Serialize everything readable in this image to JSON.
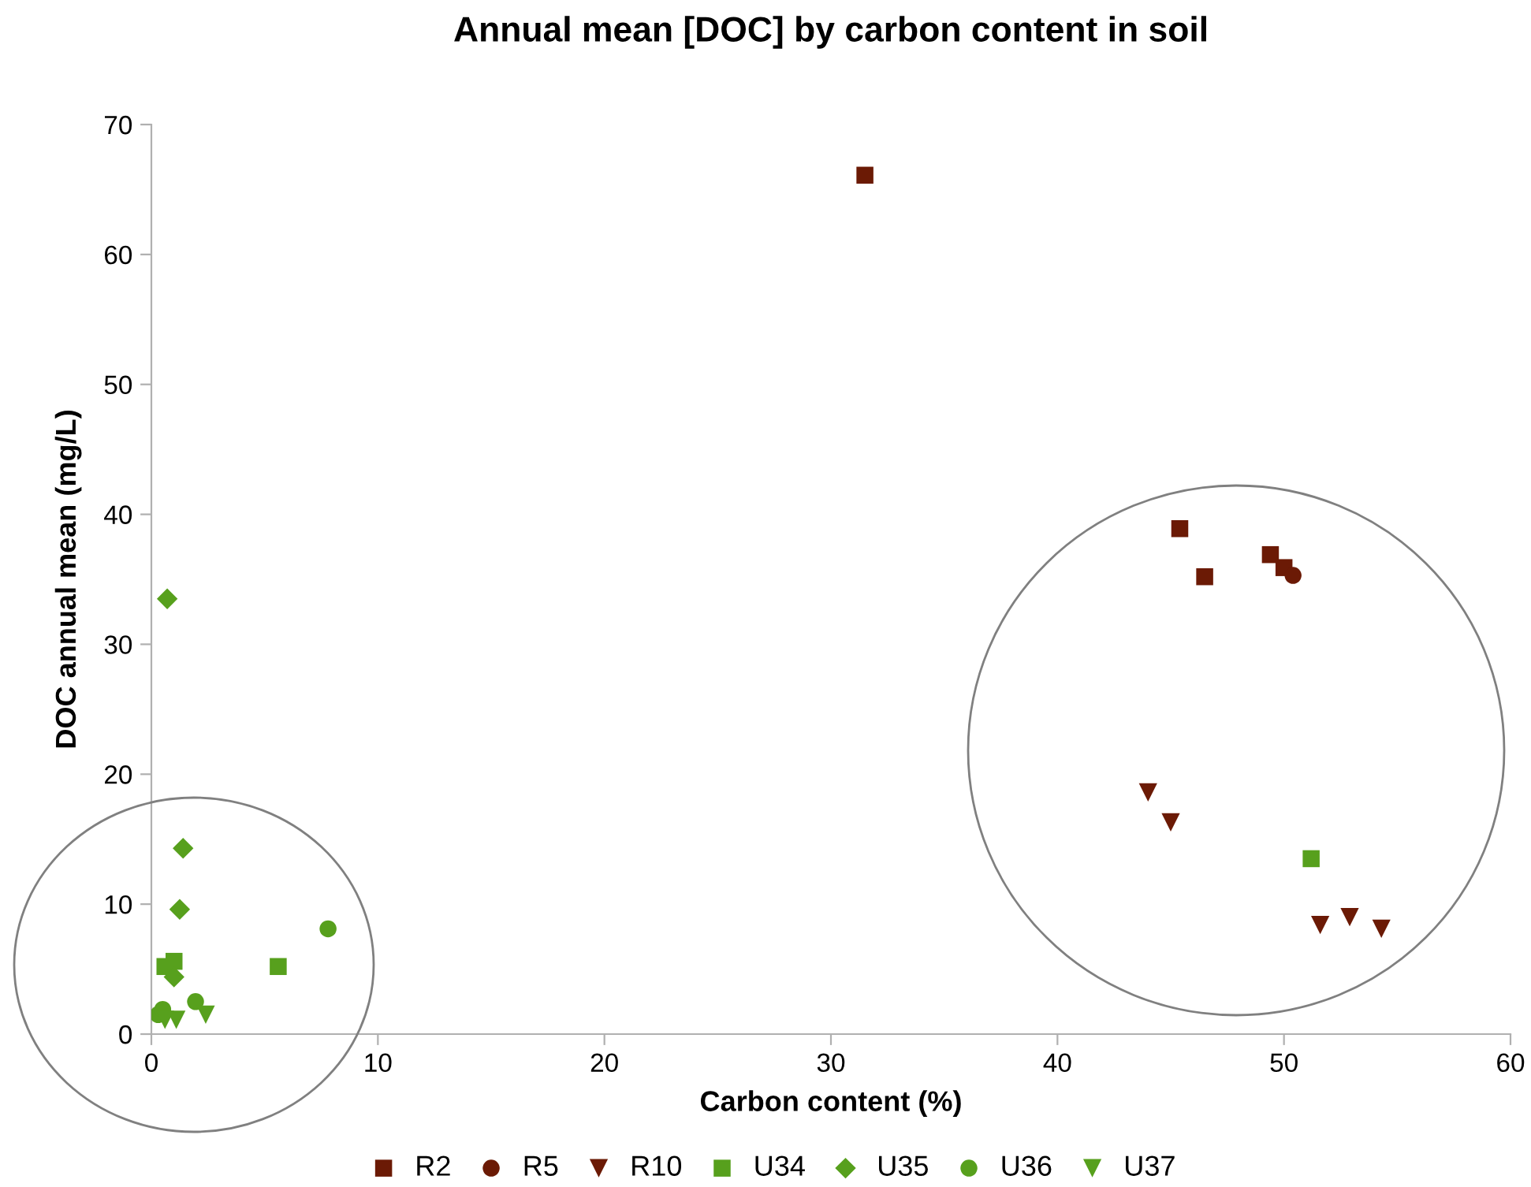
{
  "chart_data": {
    "type": "scatter",
    "title": "Annual mean [DOC] by carbon content in soil",
    "xlabel": "Carbon content (%)",
    "ylabel": "DOC annual mean (mg/L)",
    "xlim": [
      0,
      60
    ],
    "xticks": [
      0,
      10,
      20,
      30,
      40,
      50,
      60
    ],
    "ylim": [
      0,
      70
    ],
    "yticks": [
      0,
      10,
      20,
      30,
      40,
      50,
      60,
      70
    ],
    "grid": false,
    "legend": "bottom",
    "series": [
      {
        "name": "R2",
        "color": "#6b1a05",
        "marker": "square",
        "x": [
          31.5,
          45.4,
          46.5,
          49.4,
          50.0
        ],
        "values": [
          66.1,
          38.9,
          35.2,
          36.9,
          35.9
        ]
      },
      {
        "name": "R5",
        "color": "#6b1a05",
        "marker": "circle",
        "x": [
          50.4
        ],
        "values": [
          35.3
        ]
      },
      {
        "name": "R10",
        "color": "#6b1a05",
        "marker": "triangle",
        "x": [
          44.0,
          45.0,
          51.6,
          52.9,
          54.3
        ],
        "values": [
          18.6,
          16.3,
          8.4,
          9.0,
          8.1
        ]
      },
      {
        "name": "U34",
        "color": "#57a01d",
        "marker": "square",
        "x": [
          51.2,
          5.6,
          0.6,
          1.0
        ],
        "values": [
          13.5,
          5.2,
          5.2,
          5.6
        ]
      },
      {
        "name": "U35",
        "color": "#57a01d",
        "marker": "diamond",
        "x": [
          0.7,
          1.4,
          1.25,
          1.0
        ],
        "values": [
          33.5,
          14.3,
          9.6,
          4.4
        ]
      },
      {
        "name": "U36",
        "color": "#57a01d",
        "marker": "circle",
        "x": [
          7.8,
          1.95,
          0.3,
          0.5
        ],
        "values": [
          8.1,
          2.5,
          1.5,
          1.9
        ]
      },
      {
        "name": "U37",
        "color": "#57a01d",
        "marker": "triangle",
        "x": [
          2.4,
          1.1,
          0.6
        ],
        "values": [
          1.5,
          1.1,
          1.1
        ]
      }
    ]
  }
}
